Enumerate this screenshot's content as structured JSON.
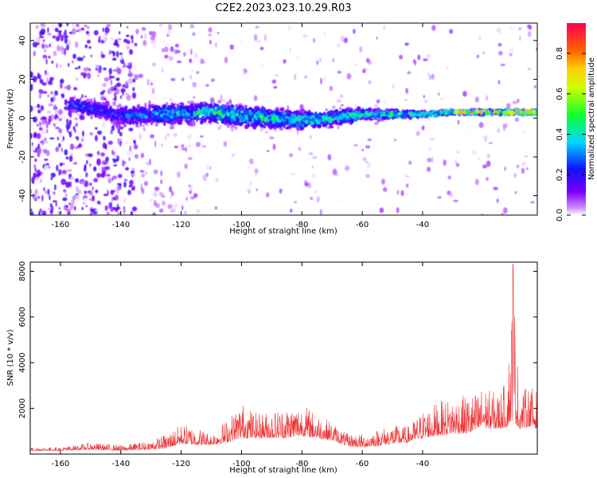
{
  "title": "C2E2.2023.023.10.29.R03",
  "colors": {
    "snr_line": "#ef3333",
    "spectrum_core": [
      "#7b00ff",
      "#0028ff",
      "#00d8ff",
      "#28ff28",
      "#ffee00",
      "#ff8800",
      "#ff0044"
    ]
  },
  "chart_data": [
    {
      "type": "heatmap",
      "title": "",
      "xlabel": "Height of straight line (km)",
      "ylabel": "Frequency (Hz)",
      "xlim": [
        -170,
        -2
      ],
      "ylim": [
        -50,
        49
      ],
      "xticks": [
        -160,
        -140,
        -120,
        -100,
        -80,
        -60,
        -40
      ],
      "yticks": [
        -40,
        -20,
        0,
        20,
        40
      ],
      "colorbar": {
        "label": "Normalized spectral amplitude",
        "range": [
          0,
          0.95
        ],
        "ticks": [
          "0.0",
          "0.2",
          "0.4",
          "0.6",
          "0.8"
        ],
        "colormap": "rainbow (white-violet-blue-cyan-green-yellow-red-magenta)"
      },
      "ridge": {
        "description": "Main spectral ridge near 0 Hz",
        "height_km": [
          -155,
          -140,
          -125,
          -110,
          -100,
          -90,
          -80,
          -70,
          -60,
          -50,
          -40,
          -30,
          -20,
          -5
        ],
        "center_freq_hz": [
          7,
          1,
          2,
          3,
          1,
          0,
          -1,
          0,
          2,
          2,
          2,
          3,
          3,
          3
        ],
        "half_width_hz": [
          5,
          7,
          7,
          7,
          7,
          7,
          6,
          6,
          4,
          3,
          2,
          1.5,
          1.5,
          1.5
        ],
        "peak_amplitude": [
          0.3,
          0.25,
          0.4,
          0.45,
          0.45,
          0.45,
          0.45,
          0.45,
          0.45,
          0.5,
          0.55,
          0.65,
          0.75,
          0.85
        ]
      }
    },
    {
      "type": "line",
      "title": "",
      "xlabel": "Height of straight line (km)",
      "ylabel": "SNR (10 * v/v)",
      "xlim": [
        -170,
        -2
      ],
      "ylim": [
        0,
        8400
      ],
      "xticks": [
        -160,
        -140,
        -120,
        -100,
        -80,
        -60,
        -40
      ],
      "yticks": [
        2000,
        4000,
        6000,
        8000
      ],
      "series": [
        {
          "height_km": [
            -170,
            -160,
            -150,
            -140,
            -130,
            -125,
            -120,
            -115,
            -110,
            -105,
            -100,
            -95,
            -90,
            -85,
            -80,
            -75,
            -70,
            -65,
            -60,
            -55,
            -50,
            -45,
            -40,
            -35,
            -30,
            -25,
            -22,
            -20,
            -18,
            -15,
            -12,
            -10,
            -8,
            -5,
            -2
          ],
          "snr_envelope": [
            300,
            300,
            500,
            400,
            600,
            900,
            1300,
            1200,
            900,
            1500,
            2300,
            1800,
            1900,
            2100,
            2200,
            1800,
            1400,
            900,
            900,
            1100,
            1300,
            1200,
            1900,
            2300,
            2500,
            2600,
            2700,
            3000,
            2800,
            2700,
            3200,
            8300,
            2700,
            3000,
            2800
          ],
          "snr_baseline": [
            150,
            150,
            200,
            150,
            200,
            250,
            450,
            400,
            400,
            500,
            700,
            700,
            700,
            700,
            800,
            700,
            600,
            350,
            300,
            350,
            450,
            500,
            700,
            800,
            900,
            900,
            1000,
            1200,
            1100,
            1100,
            1200,
            1500,
            1100,
            1200,
            1100
          ]
        }
      ]
    }
  ]
}
